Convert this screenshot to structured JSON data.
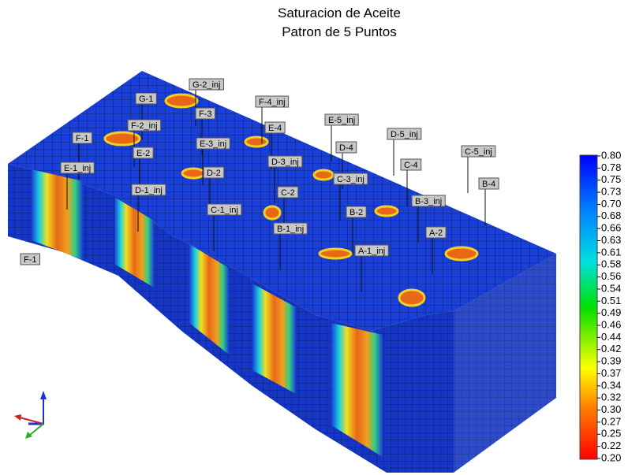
{
  "title": [
    "Saturacion de Aceite",
    "Patron de 5 Puntos"
  ],
  "wells": [
    "G-2_inj",
    "G-1",
    "F-3",
    "F-4_inj",
    "F-2_inj",
    "E-4",
    "E-5_inj",
    "F-1",
    "E-2",
    "E-3_inj",
    "D-4",
    "D-5_inj",
    "C-5_inj",
    "E-1_inj",
    "D-3_inj",
    "C-4",
    "D-2",
    "C-3_inj",
    "B-4",
    "D-1_inj",
    "C-2",
    "B-3_inj",
    "C-1_inj",
    "B-2",
    "B-1_inj",
    "A-2",
    "F-1",
    "A-1_inj"
  ],
  "colorbar": {
    "ticks": [
      "0.80",
      "0.78",
      "0.75",
      "0.73",
      "0.70",
      "0.68",
      "0.66",
      "0.63",
      "0.61",
      "0.58",
      "0.56",
      "0.54",
      "0.51",
      "0.49",
      "0.46",
      "0.44",
      "0.42",
      "0.39",
      "0.37",
      "0.34",
      "0.32",
      "0.30",
      "0.27",
      "0.25",
      "0.22",
      "0.20"
    ]
  }
}
